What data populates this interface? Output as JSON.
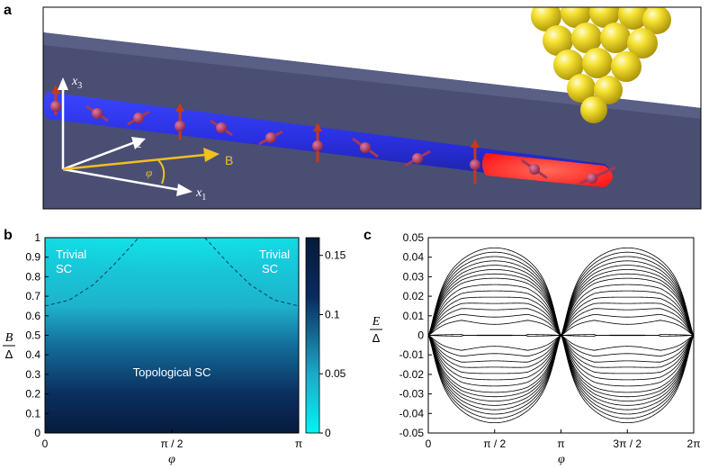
{
  "panels": {
    "a": {
      "letter": "a",
      "axis_x1": "x",
      "axis_x1_sub": "1",
      "axis_x2": "x",
      "axis_x2_sub": "2",
      "axis_x3": "x",
      "axis_x3_sub": "3",
      "field_label": "B",
      "angle_label": "φ",
      "colors": {
        "wire": "#2a35e8",
        "slab": "#4a4e72",
        "tip": "#f0dc1e",
        "majorana": "#ff2a2a",
        "spin": "#c43a1e",
        "field": "#f0c020"
      }
    },
    "b": {
      "letter": "b"
    },
    "c": {
      "letter": "c"
    }
  },
  "chart_data": [
    {
      "type": "heatmap",
      "panel": "b",
      "xlabel": "φ",
      "ylabel_num": "B",
      "ylabel_den": "Δ",
      "xlim": [
        0,
        3.1416
      ],
      "ylim": [
        0,
        1
      ],
      "xticks": [
        {
          "value": 0,
          "label": "0"
        },
        {
          "value": 1.5708,
          "label": "π / 2"
        },
        {
          "value": 3.1416,
          "label": "π"
        }
      ],
      "yticks": [
        {
          "value": 0,
          "label": "0"
        },
        {
          "value": 0.1,
          "label": "0.1"
        },
        {
          "value": 0.2,
          "label": "0.2"
        },
        {
          "value": 0.3,
          "label": "0.3"
        },
        {
          "value": 0.4,
          "label": "0.4"
        },
        {
          "value": 0.5,
          "label": "0.5"
        },
        {
          "value": 0.6,
          "label": "0.6"
        },
        {
          "value": 0.7,
          "label": "0.7"
        },
        {
          "value": 0.8,
          "label": "0.8"
        },
        {
          "value": 0.9,
          "label": "0.9"
        },
        {
          "value": 1,
          "label": "1"
        }
      ],
      "colorbar": {
        "ticks": [
          {
            "value": 0,
            "label": "0"
          },
          {
            "value": 0.05,
            "label": "0.05"
          },
          {
            "value": 0.1,
            "label": "0.1"
          },
          {
            "value": 0.15,
            "label": "0.15"
          }
        ],
        "range": [
          0,
          0.165
        ],
        "colors": [
          "#00f5f5",
          "#1fa8c8",
          "#0a2a5e",
          "#061a3a"
        ]
      },
      "annotations": [
        {
          "text": "Trivial",
          "text2": "SC",
          "position": "top-left"
        },
        {
          "text": "Trivial",
          "text2": "SC",
          "position": "top-right"
        },
        {
          "text": "Topological SC",
          "position": "center-lower"
        }
      ],
      "phase_boundary": {
        "style": "dashed",
        "left": [
          [
            0,
            0.65
          ],
          [
            0.3,
            0.68
          ],
          [
            0.6,
            0.76
          ],
          [
            0.85,
            0.86
          ],
          [
            1.05,
            0.95
          ],
          [
            1.16,
            1.0
          ]
        ],
        "right": [
          [
            1.98,
            1.0
          ],
          [
            2.09,
            0.95
          ],
          [
            2.29,
            0.86
          ],
          [
            2.54,
            0.76
          ],
          [
            2.84,
            0.68
          ],
          [
            3.1416,
            0.65
          ]
        ]
      }
    },
    {
      "type": "line",
      "panel": "c",
      "xlabel": "φ",
      "ylabel_num": "E",
      "ylabel_den": "Δ",
      "xlim": [
        0,
        6.2832
      ],
      "ylim": [
        -0.05,
        0.05
      ],
      "xticks": [
        {
          "value": 0,
          "label": "0"
        },
        {
          "value": 1.5708,
          "label": "π / 2"
        },
        {
          "value": 3.1416,
          "label": "π"
        },
        {
          "value": 4.7124,
          "label": "3π / 2"
        },
        {
          "value": 6.2832,
          "label": "2π"
        }
      ],
      "yticks": [
        {
          "value": -0.05,
          "label": "-0.05"
        },
        {
          "value": -0.04,
          "label": "-0.04"
        },
        {
          "value": -0.03,
          "label": "-0.03"
        },
        {
          "value": -0.02,
          "label": "-0.02"
        },
        {
          "value": -0.01,
          "label": "-0.01"
        },
        {
          "value": 0,
          "label": "0"
        },
        {
          "value": 0.01,
          "label": "0.01"
        },
        {
          "value": 0.02,
          "label": "0.02"
        },
        {
          "value": 0.03,
          "label": "0.03"
        },
        {
          "value": 0.04,
          "label": "0.04"
        },
        {
          "value": 0.05,
          "label": "0.05"
        }
      ],
      "bands": {
        "count": 16,
        "gap_closing_phi": [
          0,
          3.1416,
          6.2832
        ],
        "gap_min_levels": [
          0.0005,
          0.009,
          0.0125,
          0.016,
          0.019,
          0.022,
          0.025,
          0.028,
          0.031,
          0.033,
          0.035,
          0.037,
          0.039,
          0.041,
          0.043,
          0.045
        ],
        "zero_mode_intervals": [
          [
            1.15,
            1.99
          ],
          [
            4.29,
            5.13
          ]
        ]
      }
    }
  ]
}
